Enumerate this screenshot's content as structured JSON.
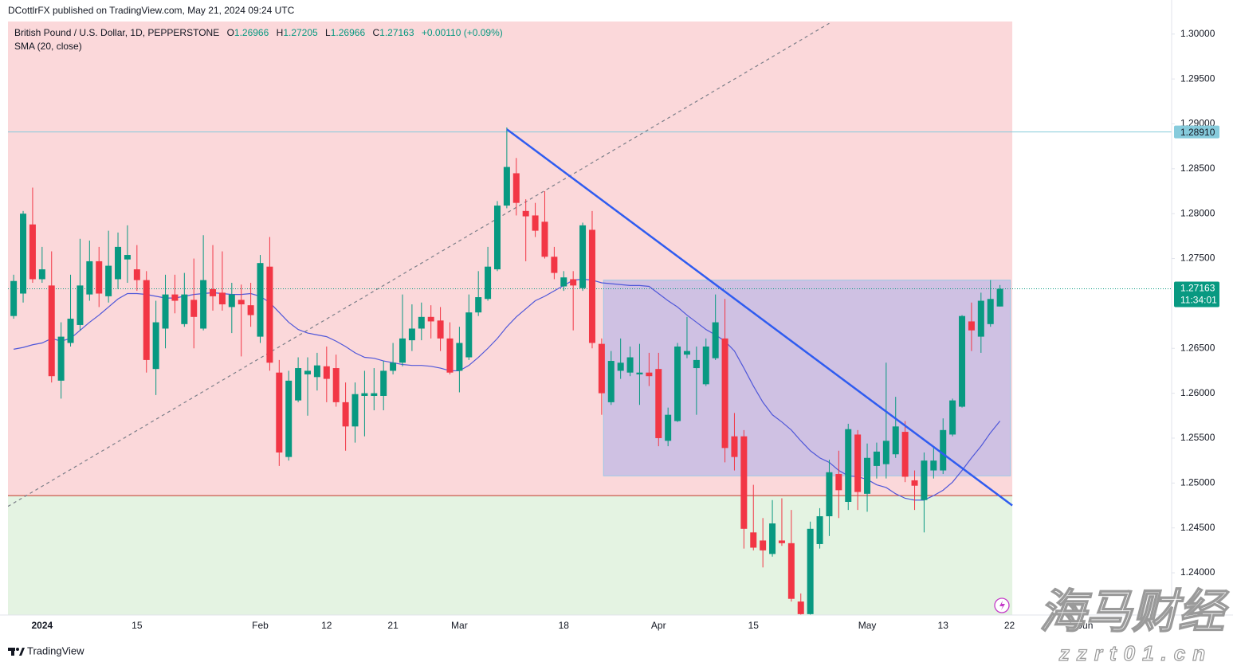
{
  "header": {
    "publisher": "DCottlrFX published on TradingView.com, May 21, 2024 09:24 UTC"
  },
  "chart_data": {
    "type": "candlestick",
    "title": "British Pound / U.S. Dollar, 1D, PEPPERSTONE",
    "ohlc_labels": [
      "O",
      "H",
      "L",
      "C"
    ],
    "change": "+0.00110 (+0.09%)",
    "up_color": "#089981",
    "down_color": "#f23645",
    "open": [
      1.2686,
      1.2711,
      1.2788,
      1.2727,
      1.272,
      1.2614,
      1.2656,
      1.2676,
      1.271,
      1.2747,
      1.2708,
      1.2727,
      1.2749,
      1.2738,
      1.2726,
      1.2627,
      1.2672,
      1.271,
      1.2677,
      1.2704,
      1.2672,
      1.2716,
      1.2712,
      1.2696,
      1.2704,
      1.2698,
      1.2663,
      1.2741,
      1.2623,
      1.2529,
      1.2592,
      1.2621,
      1.2618,
      1.263,
      1.2628,
      1.259,
      1.2563,
      1.2597,
      1.2597,
      1.2597,
      1.2625,
      1.2634,
      1.2659,
      1.2672,
      1.2685,
      1.2681,
      1.2661,
      1.2625,
      1.264,
      1.269,
      1.2705,
      1.2738,
      1.2809,
      1.2845,
      1.2803,
      1.2798,
      1.2791,
      1.2752,
      1.2719,
      1.2727,
      1.2717,
      1.2782,
      1.2655,
      1.259,
      1.2625,
      1.2623,
      1.2621,
      1.2623,
      1.2627,
      1.2547,
      1.2569,
      1.2643,
      1.2628,
      1.261,
      1.2639,
      1.2661,
      1.2552,
      1.2552,
      1.2445,
      1.2436,
      1.2421,
      1.2436,
      1.2433,
      1.2368,
      1.2354,
      1.2432,
      1.2463,
      1.251,
      1.2479,
      1.2554,
      1.2488,
      1.2519,
      1.2521,
      1.2532,
      1.2557,
      1.2503,
      1.2481,
      1.2514,
      1.2514,
      1.2554,
      1.2585,
      1.268,
      1.2663,
      1.2677,
      1.26966
    ],
    "high": [
      1.2732,
      1.2803,
      1.2829,
      1.2763,
      1.2758,
      1.2679,
      1.2732,
      1.2772,
      1.277,
      1.2763,
      1.2781,
      1.2779,
      1.2787,
      1.2765,
      1.2736,
      1.2703,
      1.2732,
      1.2732,
      1.2734,
      1.275,
      1.2776,
      1.2765,
      1.2758,
      1.2723,
      1.2721,
      1.2723,
      1.2754,
      1.2774,
      1.2637,
      1.2625,
      1.264,
      1.264,
      1.2645,
      1.2652,
      1.2643,
      1.2612,
      1.2612,
      1.2625,
      1.2628,
      1.2636,
      1.2656,
      1.271,
      1.2699,
      1.2701,
      1.2698,
      1.2696,
      1.2679,
      1.2674,
      1.271,
      1.2736,
      1.2763,
      1.2814,
      1.2896,
      1.2862,
      1.2816,
      1.2812,
      1.2825,
      1.2763,
      1.2736,
      1.2736,
      1.279,
      1.2803,
      1.2661,
      1.2647,
      1.2661,
      1.2652,
      1.2655,
      1.2645,
      1.2645,
      1.2584,
      1.2656,
      1.2685,
      1.2652,
      1.2661,
      1.271,
      1.2705,
      1.2578,
      1.2559,
      1.2498,
      1.2461,
      1.2481,
      1.2483,
      1.247,
      1.2377,
      1.2457,
      1.2472,
      1.2526,
      1.2536,
      1.2566,
      1.2559,
      1.2544,
      1.2545,
      1.2634,
      1.2596,
      1.2569,
      1.2514,
      1.2534,
      1.2539,
      1.2572,
      1.2594,
      1.2687,
      1.2701,
      1.2712,
      1.2726,
      1.27205
    ],
    "low": [
      1.2683,
      1.2701,
      1.2723,
      1.2723,
      1.2612,
      1.2594,
      1.2652,
      1.267,
      1.2703,
      1.2696,
      1.2701,
      1.2716,
      1.2723,
      1.2714,
      1.2623,
      1.2598,
      1.265,
      1.2689,
      1.2674,
      1.265,
      1.267,
      1.2692,
      1.2692,
      1.2667,
      1.2641,
      1.2674,
      1.2656,
      1.2625,
      1.2519,
      1.2525,
      1.259,
      1.2575,
      1.2603,
      1.259,
      1.2585,
      1.2536,
      1.2545,
      1.2552,
      1.2581,
      1.2581,
      1.2621,
      1.263,
      1.2647,
      1.2659,
      1.2661,
      1.2647,
      1.2621,
      1.2601,
      1.2637,
      1.2686,
      1.2703,
      1.2736,
      1.2806,
      1.2798,
      1.2747,
      1.2774,
      1.275,
      1.2727,
      1.2714,
      1.267,
      1.2714,
      1.265,
      1.2576,
      1.2587,
      1.2616,
      1.2619,
      1.2587,
      1.2608,
      1.2541,
      1.2541,
      1.2568,
      1.2639,
      1.2576,
      1.2608,
      1.2637,
      1.2523,
      1.2514,
      1.2427,
      1.2425,
      1.2406,
      1.2418,
      1.243,
      1.2368,
      1.235,
      1.235,
      1.2427,
      1.2441,
      1.2461,
      1.247,
      1.247,
      1.2468,
      1.2505,
      1.2505,
      1.2528,
      1.2501,
      1.247,
      1.2445,
      1.2505,
      1.251,
      1.2552,
      1.2584,
      1.2647,
      1.2645,
      1.2674,
      1.26966
    ],
    "close": [
      1.2725,
      1.28,
      1.2727,
      1.2738,
      1.2619,
      1.2663,
      1.2683,
      1.272,
      1.2747,
      1.2711,
      1.2742,
      1.2763,
      1.2754,
      1.2726,
      1.2637,
      1.2679,
      1.271,
      1.2703,
      1.271,
      1.2685,
      1.2726,
      1.2708,
      1.2699,
      1.271,
      1.2699,
      1.2687,
      1.2745,
      1.2634,
      1.2534,
      1.2614,
      1.2628,
      1.2625,
      1.2631,
      1.2616,
      1.259,
      1.2563,
      1.2599,
      1.26,
      1.26,
      1.2625,
      1.2634,
      1.2661,
      1.2672,
      1.2685,
      1.268,
      1.2661,
      1.2623,
      1.2656,
      1.269,
      1.2707,
      1.2741,
      1.2809,
      1.2852,
      1.2812,
      1.2797,
      1.2781,
      1.2752,
      1.2734,
      1.2729,
      1.272,
      1.2787,
      1.2656,
      1.26,
      1.2636,
      1.2634,
      1.264,
      1.2623,
      1.2619,
      1.255,
      1.2576,
      1.2652,
      1.2647,
      1.2637,
      1.2652,
      1.2679,
      1.2539,
      1.2529,
      1.2449,
      1.2428,
      1.2425,
      1.2455,
      1.2433,
      1.2371,
      1.2354,
      1.2449,
      1.2463,
      1.2512,
      1.2492,
      1.256,
      1.249,
      1.2528,
      1.2535,
      1.2547,
      1.2563,
      1.2507,
      1.2497,
      1.2525,
      1.2525,
      1.2559,
      1.2592,
      1.2686,
      1.267,
      1.2703,
      1.2705,
      1.27163
    ],
    "series": [
      {
        "name": "SMA (20, close)",
        "color": "#4f57d9",
        "values": [
          1.2649,
          1.2651,
          1.2654,
          1.2656,
          1.2661,
          1.2658,
          1.2661,
          1.267,
          1.2679,
          1.2687,
          1.2696,
          1.2705,
          1.2711,
          1.2711,
          1.271,
          1.2708,
          1.2706,
          1.2706,
          1.2708,
          1.271,
          1.2711,
          1.2712,
          1.2711,
          1.271,
          1.271,
          1.2711,
          1.2708,
          1.2701,
          1.269,
          1.2679,
          1.2671,
          1.2667,
          1.2665,
          1.2663,
          1.2658,
          1.2652,
          1.2645,
          1.264,
          1.2639,
          1.2636,
          1.2634,
          1.2632,
          1.2631,
          1.2631,
          1.263,
          1.2628,
          1.2625,
          1.2625,
          1.2631,
          1.264,
          1.265,
          1.2661,
          1.2674,
          1.2685,
          1.2694,
          1.2703,
          1.2708,
          1.2714,
          1.272,
          1.2726,
          1.2727,
          1.2726,
          1.2723,
          1.2722,
          1.2721,
          1.272,
          1.272,
          1.2719,
          1.2711,
          1.2703,
          1.2696,
          1.2687,
          1.2679,
          1.2671,
          1.2665,
          1.2658,
          1.2647,
          1.2628,
          1.2608,
          1.259,
          1.2576,
          1.2568,
          1.2559,
          1.2547,
          1.2536,
          1.2528,
          1.2523,
          1.2514,
          1.2508,
          1.2507,
          1.2504,
          1.2498,
          1.2495,
          1.2488,
          1.2483,
          1.2481,
          1.2481,
          1.2486,
          1.2492,
          1.2501,
          1.2514,
          1.2528,
          1.2541,
          1.2556,
          1.2569
        ]
      }
    ],
    "xlim": [
      -0.6,
      122.1
    ],
    "xticks": [
      {
        "value": 3,
        "label": "2024"
      },
      {
        "value": 13,
        "label": "15"
      },
      {
        "value": 26,
        "label": "Feb"
      },
      {
        "value": 33,
        "label": "12"
      },
      {
        "value": 40,
        "label": "21"
      },
      {
        "value": 47,
        "label": "Mar"
      },
      {
        "value": 58,
        "label": "18"
      },
      {
        "value": 68,
        "label": "Apr"
      },
      {
        "value": 78,
        "label": "15"
      },
      {
        "value": 90,
        "label": "May"
      },
      {
        "value": 98,
        "label": "13"
      },
      {
        "value": 105,
        "label": "22"
      },
      {
        "value": 113,
        "label": "Jun"
      }
    ],
    "ylim": [
      1.2353,
      1.3014
    ],
    "yticks": [
      {
        "value": 1.3,
        "label": "1.30000"
      },
      {
        "value": 1.295,
        "label": "1.29500"
      },
      {
        "value": 1.29,
        "label": "1.29000"
      },
      {
        "value": 1.285,
        "label": "1.28500"
      },
      {
        "value": 1.28,
        "label": "1.28000"
      },
      {
        "value": 1.275,
        "label": "1.27500"
      },
      {
        "value": 1.265,
        "label": "1.26500"
      },
      {
        "value": 1.26,
        "label": "1.26000"
      },
      {
        "value": 1.255,
        "label": "1.25500"
      },
      {
        "value": 1.25,
        "label": "1.25000"
      },
      {
        "value": 1.245,
        "label": "1.24500"
      },
      {
        "value": 1.24,
        "label": "1.24000"
      }
    ],
    "grid": false,
    "zones": [
      {
        "from": 1.2486,
        "to": 1.3014,
        "color": "#fbd8da"
      },
      {
        "from": 1.2353,
        "to": 1.2486,
        "color": "#e4f3e2"
      }
    ],
    "zone_x": [
      -0.6,
      105.3
    ],
    "rectangle": {
      "x": [
        62.2,
        105.1
      ],
      "y": [
        1.2508,
        1.2726
      ],
      "color": "#cfc1e3"
    },
    "trendlines": [
      {
        "x": [
          52,
          105.3
        ],
        "y": [
          1.2894,
          1.2475
        ],
        "color": "#2f5cf0",
        "dashed": false
      },
      {
        "x": [
          -0.6,
          86
        ],
        "y": [
          1.2474,
          1.3012
        ],
        "color": "#7b7e88",
        "dashed": true
      }
    ],
    "hline": {
      "value": 1.2891,
      "label": "1.28910",
      "color": "#86cbdc"
    },
    "countdown": "11:34:01"
  },
  "watermark": {
    "title": "海马财经",
    "url": "zzrt01.cn"
  },
  "footer": {
    "brand": "TradingView"
  }
}
